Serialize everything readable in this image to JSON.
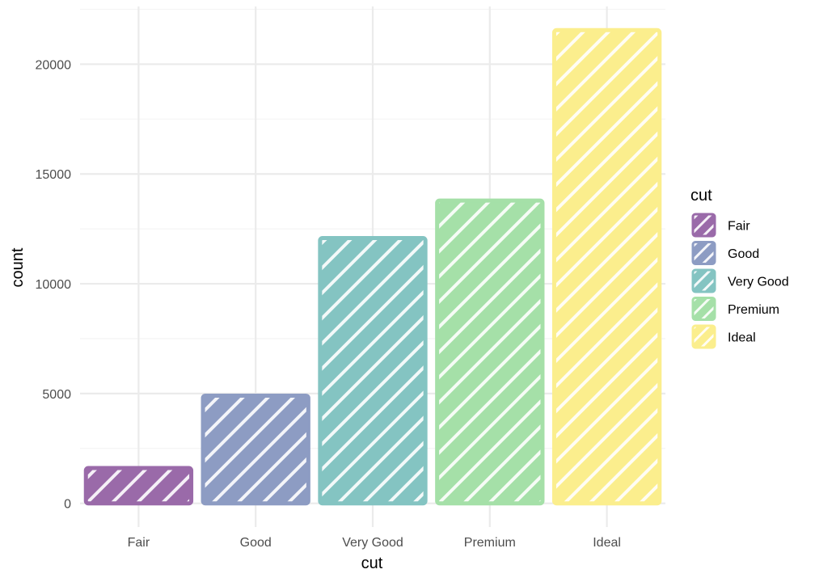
{
  "chart_data": {
    "type": "bar",
    "title": "",
    "xlabel": "cut",
    "ylabel": "count",
    "categories": [
      "Fair",
      "Good",
      "Very Good",
      "Premium",
      "Ideal"
    ],
    "values": [
      1610,
      4906,
      12082,
      13791,
      21551
    ],
    "colors": [
      "#9a6aa9",
      "#8d9cc3",
      "#84c4c2",
      "#a5e0a8",
      "#fbee8d"
    ],
    "ylim": [
      -1078,
      22629
    ],
    "yticks": [
      0,
      5000,
      10000,
      15000,
      20000
    ],
    "ytick_labels": [
      "0",
      "5000",
      "10000",
      "15000",
      "20000"
    ],
    "grid": true,
    "fill_pattern": "diagonal stripes",
    "legend": {
      "title": "cut",
      "position": "right",
      "items": [
        "Fair",
        "Good",
        "Very Good",
        "Premium",
        "Ideal"
      ]
    }
  }
}
